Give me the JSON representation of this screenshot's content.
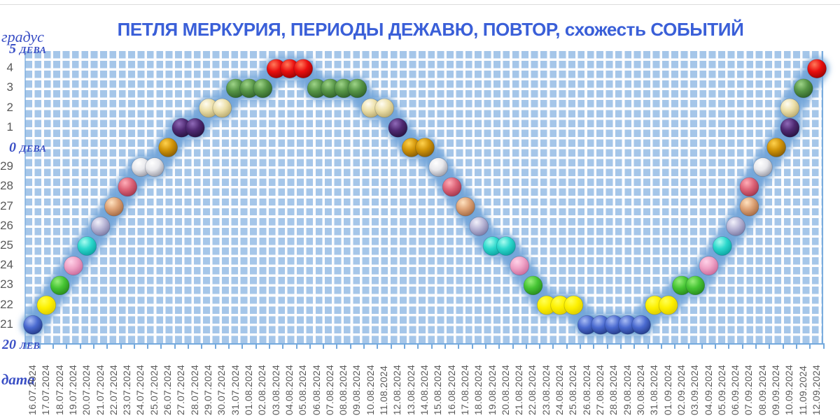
{
  "title": "ПЕТЛЯ МЕРКУРИЯ, ПЕРИОДЫ ДЕЖАВЮ, ПОВТОР, схожесть СОБЫТИЙ",
  "chart_data": {
    "type": "scatter",
    "title": "ПЕТЛЯ МЕРКУРИЯ, ПЕРИОДЫ ДЕЖАВЮ, ПОВТОР, схожесть СОБЫТИЙ",
    "xlabel": "дата",
    "ylabel": "градус",
    "grid": true,
    "legend": false,
    "y_ticks": [
      {
        "v": 15,
        "num": "5",
        "zodiac": "ДЕВА"
      },
      {
        "v": 14,
        "num": "4"
      },
      {
        "v": 13,
        "num": "3"
      },
      {
        "v": 12,
        "num": "2"
      },
      {
        "v": 11,
        "num": "1"
      },
      {
        "v": 10,
        "num": "0",
        "zodiac": "ДЕВА"
      },
      {
        "v": 9,
        "num": "29"
      },
      {
        "v": 8,
        "num": "28"
      },
      {
        "v": 7,
        "num": "27"
      },
      {
        "v": 6,
        "num": "26"
      },
      {
        "v": 5,
        "num": "25"
      },
      {
        "v": 4,
        "num": "24"
      },
      {
        "v": 3,
        "num": "23"
      },
      {
        "v": 2,
        "num": "22"
      },
      {
        "v": 1,
        "num": "21"
      },
      {
        "v": 0,
        "num": "20",
        "zodiac": "ЛЕВ"
      }
    ],
    "x_dates": [
      "16.07.2024",
      "17.07.2024",
      "18.07.2024",
      "19.07.2024",
      "20.07.2024",
      "21.07.2024",
      "22.07.2024",
      "23.07.2024",
      "24.07.2024",
      "25.07.2024",
      "26.07.2024",
      "27.07.2024",
      "28.07.2024",
      "29.07.2024",
      "30.07.2024",
      "31.07.2024",
      "01.08.2024",
      "02.08.2024",
      "03.08.2024",
      "04.08.2024",
      "05.08.2024",
      "06.08.2024",
      "07.08.2024",
      "08.08.2024",
      "09.08.2024",
      "10.08.2024",
      "11.08.2024",
      "12.08.2024",
      "13.08.2024",
      "14.08.2024",
      "15.08.2024",
      "16.08.2024",
      "17.08.2024",
      "18.08.2024",
      "19.08.2024",
      "20.08.2024",
      "21.08.2024",
      "22.08.2024",
      "23.08.2024",
      "24.08.2024",
      "25.08.2024",
      "26.08.2024",
      "27.08.2024",
      "28.08.2024",
      "29.08.2024",
      "30.08.2024",
      "31.08.2024",
      "01.09.2024",
      "02.09.2024",
      "03.09.2024",
      "04.09.2024",
      "05.09.2024",
      "06.09.2024",
      "07.09.2024",
      "08.09.2024",
      "09.09.2024",
      "10.09.2024",
      "11.09.2024",
      "12.09.2024"
    ],
    "degree_colors": [
      {
        "v": 1,
        "deg": "21",
        "name": "royal-blue",
        "hi": "#a8bcf4",
        "body": "#4a6ad0",
        "edge": "#27408f"
      },
      {
        "v": 2,
        "deg": "22",
        "name": "yellow",
        "hi": "#ffff55",
        "body": "#fdf000",
        "edge": "#e0cf00"
      },
      {
        "v": 3,
        "deg": "23",
        "name": "green",
        "hi": "#98ee7a",
        "body": "#46c534",
        "edge": "#2b8f1f"
      },
      {
        "v": 4,
        "deg": "24",
        "name": "pink",
        "hi": "#ffd2e8",
        "body": "#efa2c6",
        "edge": "#cc6f9e"
      },
      {
        "v": 5,
        "deg": "25",
        "name": "turquoise",
        "hi": "#a8fcf0",
        "body": "#2cd8cc",
        "edge": "#0fa8a4"
      },
      {
        "v": 6,
        "deg": "26",
        "name": "lavender",
        "hi": "#f2f1fb",
        "body": "#b9b6d6",
        "edge": "#807fa8"
      },
      {
        "v": 7,
        "deg": "27",
        "name": "peach-tan",
        "hi": "#ffe2c0",
        "body": "#dda276",
        "edge": "#a86f48"
      },
      {
        "v": 8,
        "deg": "28",
        "name": "rose",
        "hi": "#ffaeb8",
        "body": "#dd6478",
        "edge": "#a83a50"
      },
      {
        "v": 9,
        "deg": "29",
        "name": "white-pearl",
        "hi": "#ffffff",
        "body": "#e8e8ec",
        "edge": "#9fa0ab"
      },
      {
        "v": 10,
        "deg": "0 ДЕВА",
        "name": "gold",
        "hi": "#ffd24e",
        "body": "#d19408",
        "edge": "#8f6206"
      },
      {
        "v": 11,
        "deg": "1",
        "name": "dark-purple",
        "hi": "#8f6ab8",
        "body": "#4f2a72",
        "edge": "#2c1545"
      },
      {
        "v": 12,
        "deg": "2",
        "name": "cream",
        "hi": "#fffdf2",
        "body": "#ecdfa8",
        "edge": "#bcae74"
      },
      {
        "v": 13,
        "deg": "3",
        "name": "sage-green",
        "hi": "#9ed488",
        "body": "#579546",
        "edge": "#33662c"
      },
      {
        "v": 14,
        "deg": "4",
        "name": "red",
        "hi": "#ff7a5a",
        "body": "#ea0f0f",
        "edge": "#a30404"
      }
    ],
    "points": [
      {
        "date": "16.07.2024",
        "v": 1
      },
      {
        "date": "17.07.2024",
        "v": 2
      },
      {
        "date": "18.07.2024",
        "v": 3
      },
      {
        "date": "19.07.2024",
        "v": 4
      },
      {
        "date": "20.07.2024",
        "v": 5
      },
      {
        "date": "21.07.2024",
        "v": 6
      },
      {
        "date": "22.07.2024",
        "v": 7
      },
      {
        "date": "23.07.2024",
        "v": 8
      },
      {
        "date": "24.07.2024",
        "v": 9
      },
      {
        "date": "25.07.2024",
        "v": 9
      },
      {
        "date": "26.07.2024",
        "v": 10
      },
      {
        "date": "27.07.2024",
        "v": 11
      },
      {
        "date": "28.07.2024",
        "v": 11
      },
      {
        "date": "29.07.2024",
        "v": 12
      },
      {
        "date": "30.07.2024",
        "v": 12
      },
      {
        "date": "31.07.2024",
        "v": 13
      },
      {
        "date": "01.08.2024",
        "v": 13
      },
      {
        "date": "02.08.2024",
        "v": 13
      },
      {
        "date": "03.08.2024",
        "v": 14
      },
      {
        "date": "04.08.2024",
        "v": 14
      },
      {
        "date": "05.08.2024",
        "v": 14
      },
      {
        "date": "06.08.2024",
        "v": 13
      },
      {
        "date": "07.08.2024",
        "v": 13
      },
      {
        "date": "08.08.2024",
        "v": 13
      },
      {
        "date": "09.08.2024",
        "v": 13
      },
      {
        "date": "10.08.2024",
        "v": 12
      },
      {
        "date": "11.08.2024",
        "v": 12
      },
      {
        "date": "12.08.2024",
        "v": 11
      },
      {
        "date": "13.08.2024",
        "v": 10
      },
      {
        "date": "14.08.2024",
        "v": 10
      },
      {
        "date": "15.08.2024",
        "v": 9
      },
      {
        "date": "16.08.2024",
        "v": 8
      },
      {
        "date": "17.08.2024",
        "v": 7
      },
      {
        "date": "18.08.2024",
        "v": 6
      },
      {
        "date": "19.08.2024",
        "v": 5
      },
      {
        "date": "20.08.2024",
        "v": 5
      },
      {
        "date": "21.08.2024",
        "v": 4
      },
      {
        "date": "22.08.2024",
        "v": 3
      },
      {
        "date": "23.08.2024",
        "v": 2
      },
      {
        "date": "24.08.2024",
        "v": 2
      },
      {
        "date": "25.08.2024",
        "v": 2
      },
      {
        "date": "26.08.2024",
        "v": 1
      },
      {
        "date": "27.08.2024",
        "v": 1
      },
      {
        "date": "28.08.2024",
        "v": 1
      },
      {
        "date": "29.08.2024",
        "v": 1
      },
      {
        "date": "30.08.2024",
        "v": 1
      },
      {
        "date": "31.08.2024",
        "v": 2
      },
      {
        "date": "01.09.2024",
        "v": 2
      },
      {
        "date": "02.09.2024",
        "v": 3
      },
      {
        "date": "03.09.2024",
        "v": 3
      },
      {
        "date": "04.09.2024",
        "v": 4
      },
      {
        "date": "05.09.2024",
        "v": 5
      },
      {
        "date": "06.09.2024",
        "v": 6
      },
      {
        "date": "07.09.2024",
        "v": 7
      },
      {
        "date": "07.09.2024",
        "v": 8
      },
      {
        "date": "08.09.2024",
        "v": 9
      },
      {
        "date": "09.09.2024",
        "v": 10
      },
      {
        "date": "10.09.2024",
        "v": 11
      },
      {
        "date": "10.09.2024",
        "v": 12
      },
      {
        "date": "11.09.2024",
        "v": 13
      },
      {
        "date": "12.09.2024",
        "v": 14
      }
    ],
    "halo_color": "#78a9dc",
    "grid_cell_color": "#a5c6e9",
    "grid_line_color": "#fdfdfe",
    "axis_color": "#74a9dd",
    "tick_text_color": "#595959",
    "blue_label_color": "#3a4fc5",
    "title_color": "#3a5fd8"
  }
}
